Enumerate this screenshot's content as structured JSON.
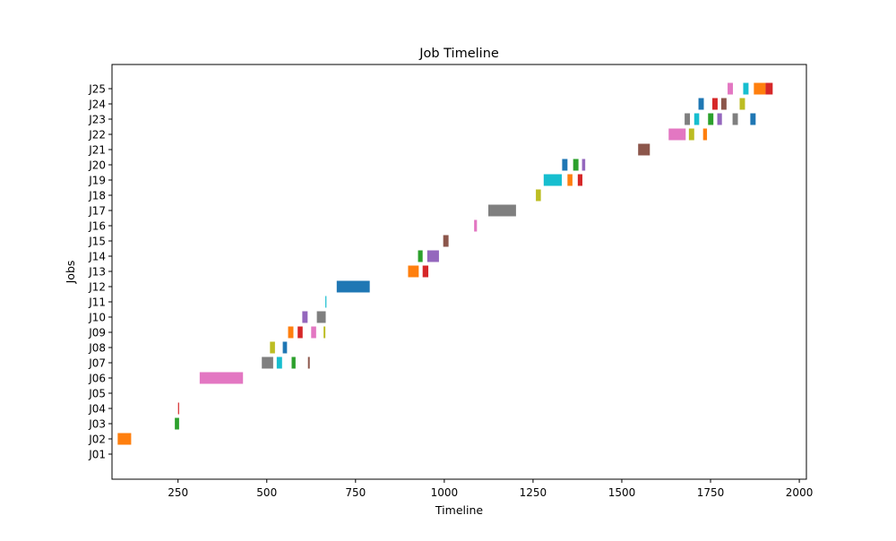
{
  "chart_data": {
    "type": "gantt",
    "title": "Job Timeline",
    "xlabel": "Timeline",
    "ylabel": "Jobs",
    "xlim": [
      64,
      2020
    ],
    "xticks": [
      250,
      500,
      750,
      1000,
      1250,
      1500,
      1750,
      2000
    ],
    "categories": [
      "J01",
      "J02",
      "J03",
      "J04",
      "J05",
      "J06",
      "J07",
      "J08",
      "J09",
      "J10",
      "J11",
      "J12",
      "J13",
      "J14",
      "J15",
      "J16",
      "J17",
      "J18",
      "J19",
      "J20",
      "J21",
      "J22",
      "J23",
      "J24",
      "J25"
    ],
    "colors": [
      "#1f77b4",
      "#ff7f0e",
      "#2ca02c",
      "#d62728",
      "#9467bd",
      "#8c564b",
      "#e377c2",
      "#7f7f7f",
      "#bcbd22",
      "#17becf"
    ],
    "tasks": [
      {
        "job": "J02",
        "start": 80,
        "end": 118,
        "color": "#ff7f0e"
      },
      {
        "job": "J03",
        "start": 241,
        "end": 253,
        "color": "#2ca02c"
      },
      {
        "job": "J04",
        "start": 250,
        "end": 253,
        "color": "#d62728"
      },
      {
        "job": "J06",
        "start": 311,
        "end": 433,
        "color": "#e377c2"
      },
      {
        "job": "J07",
        "start": 486,
        "end": 518,
        "color": "#7f7f7f"
      },
      {
        "job": "J07",
        "start": 528,
        "end": 543,
        "color": "#17becf"
      },
      {
        "job": "J07",
        "start": 570,
        "end": 581,
        "color": "#2ca02c"
      },
      {
        "job": "J07",
        "start": 616,
        "end": 621,
        "color": "#8c564b"
      },
      {
        "job": "J08",
        "start": 509,
        "end": 523,
        "color": "#bcbd22"
      },
      {
        "job": "J08",
        "start": 545,
        "end": 557,
        "color": "#1f77b4"
      },
      {
        "job": "J09",
        "start": 560,
        "end": 575,
        "color": "#ff7f0e"
      },
      {
        "job": "J09",
        "start": 587,
        "end": 601,
        "color": "#d62728"
      },
      {
        "job": "J09",
        "start": 625,
        "end": 639,
        "color": "#e377c2"
      },
      {
        "job": "J09",
        "start": 660,
        "end": 665,
        "color": "#bcbd22"
      },
      {
        "job": "J10",
        "start": 600,
        "end": 615,
        "color": "#9467bd"
      },
      {
        "job": "J10",
        "start": 641,
        "end": 666,
        "color": "#7f7f7f"
      },
      {
        "job": "J11",
        "start": 665,
        "end": 668,
        "color": "#17becf"
      },
      {
        "job": "J12",
        "start": 697,
        "end": 790,
        "color": "#1f77b4"
      },
      {
        "job": "J13",
        "start": 898,
        "end": 928,
        "color": "#ff7f0e"
      },
      {
        "job": "J13",
        "start": 939,
        "end": 955,
        "color": "#d62728"
      },
      {
        "job": "J14",
        "start": 926,
        "end": 939,
        "color": "#2ca02c"
      },
      {
        "job": "J14",
        "start": 952,
        "end": 985,
        "color": "#9467bd"
      },
      {
        "job": "J15",
        "start": 997,
        "end": 1012,
        "color": "#8c564b"
      },
      {
        "job": "J16",
        "start": 1084,
        "end": 1092,
        "color": "#e377c2"
      },
      {
        "job": "J17",
        "start": 1124,
        "end": 1202,
        "color": "#7f7f7f"
      },
      {
        "job": "J18",
        "start": 1258,
        "end": 1272,
        "color": "#bcbd22"
      },
      {
        "job": "J19",
        "start": 1280,
        "end": 1331,
        "color": "#17becf"
      },
      {
        "job": "J19",
        "start": 1347,
        "end": 1361,
        "color": "#ff7f0e"
      },
      {
        "job": "J19",
        "start": 1376,
        "end": 1389,
        "color": "#d62728"
      },
      {
        "job": "J20",
        "start": 1332,
        "end": 1347,
        "color": "#1f77b4"
      },
      {
        "job": "J20",
        "start": 1363,
        "end": 1378,
        "color": "#2ca02c"
      },
      {
        "job": "J20",
        "start": 1388,
        "end": 1397,
        "color": "#9467bd"
      },
      {
        "job": "J21",
        "start": 1546,
        "end": 1579,
        "color": "#8c564b"
      },
      {
        "job": "J22",
        "start": 1632,
        "end": 1680,
        "color": "#e377c2"
      },
      {
        "job": "J22",
        "start": 1689,
        "end": 1704,
        "color": "#bcbd22"
      },
      {
        "job": "J22",
        "start": 1729,
        "end": 1740,
        "color": "#ff7f0e"
      },
      {
        "job": "J23",
        "start": 1677,
        "end": 1692,
        "color": "#7f7f7f"
      },
      {
        "job": "J23",
        "start": 1704,
        "end": 1718,
        "color": "#17becf"
      },
      {
        "job": "J23",
        "start": 1743,
        "end": 1758,
        "color": "#2ca02c"
      },
      {
        "job": "J23",
        "start": 1769,
        "end": 1782,
        "color": "#9467bd"
      },
      {
        "job": "J23",
        "start": 1812,
        "end": 1827,
        "color": "#7f7f7f"
      },
      {
        "job": "J23",
        "start": 1862,
        "end": 1877,
        "color": "#1f77b4"
      },
      {
        "job": "J24",
        "start": 1716,
        "end": 1731,
        "color": "#1f77b4"
      },
      {
        "job": "J24",
        "start": 1755,
        "end": 1770,
        "color": "#d62728"
      },
      {
        "job": "J24",
        "start": 1780,
        "end": 1795,
        "color": "#8c564b"
      },
      {
        "job": "J24",
        "start": 1832,
        "end": 1847,
        "color": "#bcbd22"
      },
      {
        "job": "J25",
        "start": 1798,
        "end": 1813,
        "color": "#e377c2"
      },
      {
        "job": "J25",
        "start": 1842,
        "end": 1857,
        "color": "#17becf"
      },
      {
        "job": "J25",
        "start": 1872,
        "end": 1905,
        "color": "#ff7f0e"
      },
      {
        "job": "J25",
        "start": 1905,
        "end": 1925,
        "color": "#d62728"
      }
    ],
    "grid": false,
    "legend": "none"
  }
}
